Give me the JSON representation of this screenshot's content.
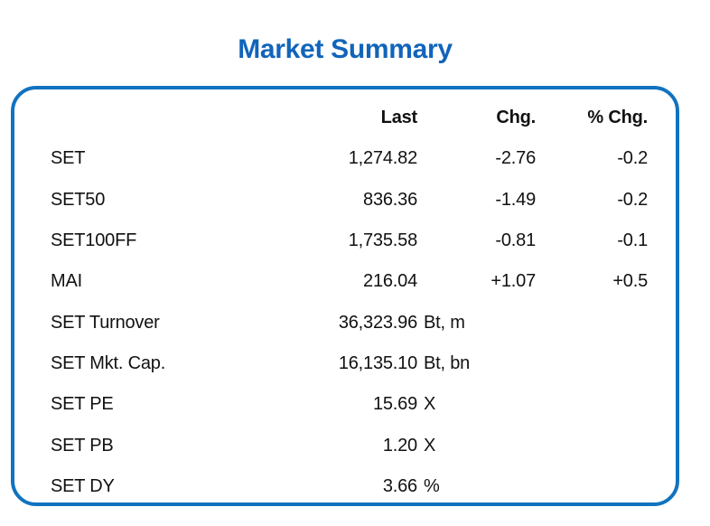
{
  "title": "Market Summary",
  "colors": {
    "accent_border_blue": "#1173C0",
    "title_blue": "#1164BA",
    "text_black": "#111111"
  },
  "table": {
    "headers": {
      "label": "",
      "last": "Last",
      "chg": "Chg.",
      "pchg": "% Chg."
    },
    "rows": [
      {
        "label": "SET",
        "last": "1,274.82",
        "unit": "",
        "chg": "-2.76",
        "pchg": "-0.2"
      },
      {
        "label": "SET50",
        "last": "836.36",
        "unit": "",
        "chg": "-1.49",
        "pchg": "-0.2"
      },
      {
        "label": "SET100FF",
        "last": "1,735.58",
        "unit": "",
        "chg": "-0.81",
        "pchg": "-0.1"
      },
      {
        "label": "MAI",
        "last": "216.04",
        "unit": "",
        "chg": "+1.07",
        "pchg": "+0.5"
      },
      {
        "label": "SET Turnover",
        "last": "36,323.96",
        "unit": "Bt, m",
        "chg": "",
        "pchg": ""
      },
      {
        "label": "SET Mkt. Cap.",
        "last": "16,135.10",
        "unit": "Bt, bn",
        "chg": "",
        "pchg": ""
      },
      {
        "label": "SET PE",
        "last": "15.69",
        "unit": "X",
        "chg": "",
        "pchg": ""
      },
      {
        "label": "SET PB",
        "last": "1.20",
        "unit": "X",
        "chg": "",
        "pchg": ""
      },
      {
        "label": "SET DY",
        "last": "3.66",
        "unit": "%",
        "chg": "",
        "pchg": ""
      }
    ]
  }
}
